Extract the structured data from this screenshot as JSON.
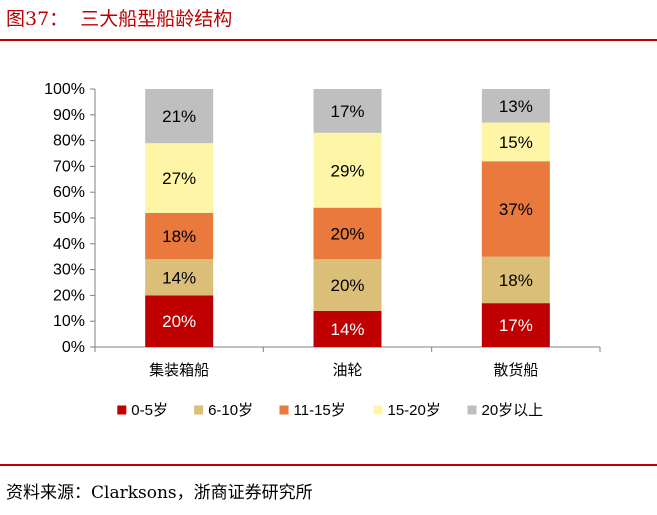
{
  "figure": {
    "title": "图37：  三大船型船龄结构",
    "source": "资料来源：Clarksons，浙商证券研究所"
  },
  "chart_data": {
    "type": "bar",
    "stacked": "percent",
    "categories": [
      "集装箱船",
      "油轮",
      "散货船"
    ],
    "y_ticks": [
      "0%",
      "10%",
      "20%",
      "30%",
      "40%",
      "50%",
      "60%",
      "70%",
      "80%",
      "90%",
      "100%"
    ],
    "ylim": [
      0,
      100
    ],
    "grid": false,
    "legend_position": "bottom",
    "series": [
      {
        "name": "0-5岁",
        "color": "#c00000",
        "label_color": "#ffffff",
        "values": [
          20,
          14,
          17
        ],
        "labels": [
          "20%",
          "14%",
          "17%"
        ]
      },
      {
        "name": "6-10岁",
        "color": "#dbbf78",
        "label_color": "#000000",
        "values": [
          14,
          20,
          18
        ],
        "labels": [
          "14%",
          "20%",
          "18%"
        ]
      },
      {
        "name": "11-15岁",
        "color": "#e9793d",
        "label_color": "#000000",
        "values": [
          18,
          20,
          37
        ],
        "labels": [
          "18%",
          "20%",
          "37%"
        ]
      },
      {
        "name": "15-20岁",
        "color": "#fef6a6",
        "label_color": "#000000",
        "values": [
          27,
          29,
          15
        ],
        "labels": [
          "27%",
          "29%",
          "15%"
        ]
      },
      {
        "name": "20岁以上",
        "color": "#bfbfbf",
        "label_color": "#000000",
        "values": [
          21,
          17,
          13
        ],
        "labels": [
          "21%",
          "17%",
          "13%"
        ]
      }
    ]
  }
}
